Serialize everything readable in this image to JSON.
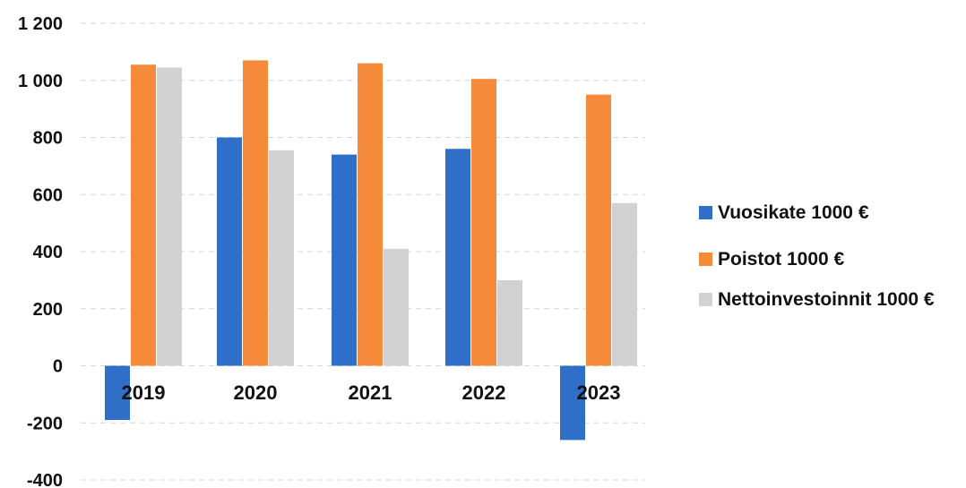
{
  "chart_data": {
    "type": "bar",
    "title": "",
    "xlabel": "",
    "ylabel": "",
    "categories": [
      "2019",
      "2020",
      "2021",
      "2022",
      "2023"
    ],
    "series": [
      {
        "name": "Vuosikate 1000 €",
        "color": "#2f6fc8",
        "values": [
          -190,
          800,
          740,
          760,
          -260
        ]
      },
      {
        "name": "Poistot 1000 €",
        "color": "#f58a3a",
        "values": [
          1055,
          1070,
          1060,
          1005,
          950
        ]
      },
      {
        "name": "Nettoinvestoinnit 1000 €",
        "color": "#d2d2d2",
        "values": [
          1045,
          755,
          410,
          300,
          570
        ]
      }
    ],
    "ylim": [
      -400,
      1200
    ],
    "yticks": [
      1200,
      1000,
      800,
      600,
      400,
      200,
      0,
      -200,
      -400
    ],
    "ytick_labels": [
      "1 200",
      "1 000",
      "800",
      "600",
      "400",
      "200",
      "0",
      "-200",
      "-400"
    ],
    "grid": true,
    "legend_position": "right"
  }
}
